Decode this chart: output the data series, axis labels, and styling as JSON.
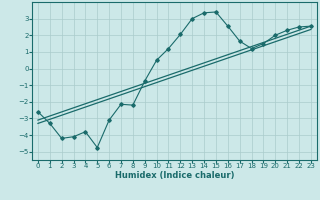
{
  "xlabel": "Humidex (Indice chaleur)",
  "xlim": [
    -0.5,
    23.5
  ],
  "ylim": [
    -5.5,
    4.0
  ],
  "xticks": [
    0,
    1,
    2,
    3,
    4,
    5,
    6,
    7,
    8,
    9,
    10,
    11,
    12,
    13,
    14,
    15,
    16,
    17,
    18,
    19,
    20,
    21,
    22,
    23
  ],
  "yticks": [
    -5,
    -4,
    -3,
    -2,
    -1,
    0,
    1,
    2,
    3
  ],
  "background_color": "#cce8e8",
  "grid_color": "#aacccc",
  "line_color": "#1a6b6b",
  "line1_x": [
    0,
    1,
    2,
    3,
    4,
    5,
    6,
    7,
    8,
    9,
    10,
    11,
    12,
    13,
    14,
    15,
    16,
    17,
    18,
    19,
    20,
    21,
    22,
    23
  ],
  "line1_y": [
    -2.6,
    -3.3,
    -4.2,
    -4.1,
    -3.8,
    -4.75,
    -3.1,
    -2.15,
    -2.2,
    -0.75,
    0.5,
    1.2,
    2.05,
    3.0,
    3.35,
    3.4,
    2.55,
    1.65,
    1.2,
    1.5,
    2.0,
    2.3,
    2.5,
    2.55
  ],
  "line2_x": [
    0,
    23
  ],
  "line2_y": [
    -3.1,
    2.55
  ],
  "line3_x": [
    0,
    23
  ],
  "line3_y": [
    -3.3,
    2.35
  ]
}
